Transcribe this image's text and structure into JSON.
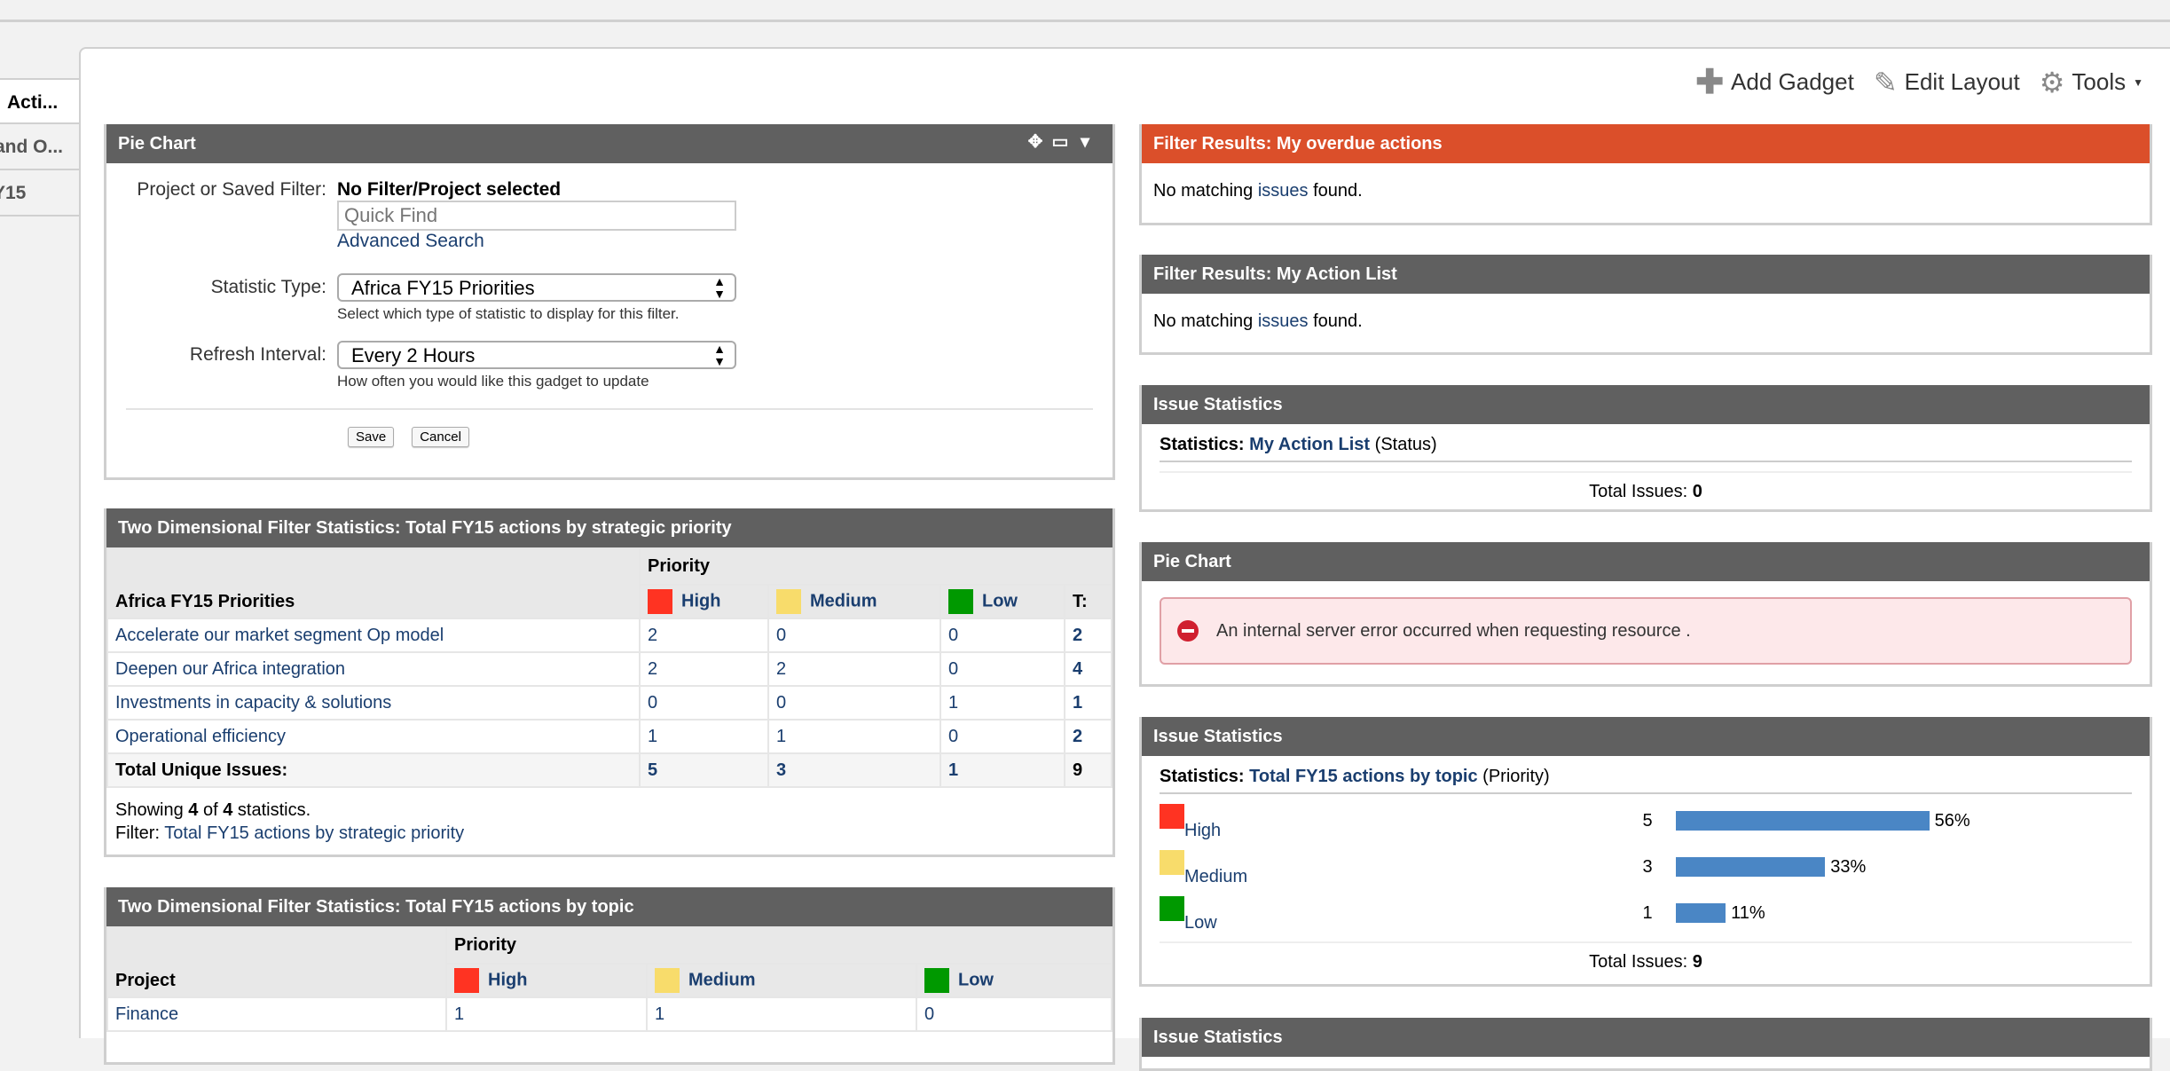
{
  "tabs": [
    "Acti...",
    "and O...",
    "Y15"
  ],
  "toolbar": {
    "add_gadget": "Add Gadget",
    "edit_layout": "Edit Layout",
    "tools": "Tools"
  },
  "pie_config": {
    "title": "Pie Chart",
    "project_label": "Project or Saved Filter:",
    "project_value": "No Filter/Project selected",
    "quick_find_placeholder": "Quick Find",
    "advanced_search": "Advanced Search",
    "stat_label": "Statistic Type:",
    "stat_value": "Africa FY15 Priorities",
    "stat_hint": "Select which type of statistic to display for this filter.",
    "refresh_label": "Refresh Interval:",
    "refresh_value": "Every 2 Hours",
    "refresh_hint": "How often you would like this gadget to update",
    "save": "Save",
    "cancel": "Cancel"
  },
  "colors": {
    "high": "#ff3322",
    "medium": "#f8dc6b",
    "low": "#009900",
    "header": "#606060",
    "header_alert": "#db4f2a",
    "bar": "#4a86c5"
  },
  "two_dim_1": {
    "title": "Two Dimensional Filter Statistics: Total FY15 actions by strategic priority",
    "row_header": "Africa FY15 Priorities",
    "group_header": "Priority",
    "columns": [
      "High",
      "Medium",
      "Low",
      "T:"
    ],
    "rows": [
      {
        "label": "Accelerate our market segment Op model",
        "values": [
          "2",
          "0",
          "0",
          "2"
        ]
      },
      {
        "label": "Deepen our Africa integration",
        "values": [
          "2",
          "2",
          "0",
          "4"
        ]
      },
      {
        "label": "Investments in capacity & solutions",
        "values": [
          "0",
          "0",
          "1",
          "1"
        ]
      },
      {
        "label": "Operational efficiency",
        "values": [
          "1",
          "1",
          "0",
          "2"
        ]
      }
    ],
    "total": {
      "label": "Total Unique Issues:",
      "values": [
        "5",
        "3",
        "1",
        "9"
      ]
    },
    "showing_pre": "Showing ",
    "showing_n": "4",
    "showing_mid": " of ",
    "showing_m": "4",
    "showing_post": " statistics.",
    "filter_label": "Filter: ",
    "filter_link": "Total FY15 actions by strategic priority"
  },
  "two_dim_2": {
    "title": "Two Dimensional Filter Statistics: Total FY15 actions by topic",
    "row_header": "Project",
    "group_header": "Priority",
    "columns": [
      "High",
      "Medium",
      "Low"
    ],
    "rows": [
      {
        "label": "Finance",
        "values": [
          "1",
          "1",
          "0"
        ]
      }
    ]
  },
  "overdue": {
    "title": "Filter Results: My overdue actions",
    "pre": "No matching ",
    "link": "issues",
    "post": " found."
  },
  "action_list": {
    "title": "Filter Results: My Action List",
    "pre": "No matching ",
    "link": "issues",
    "post": " found."
  },
  "issue_stats_1": {
    "title": "Issue Statistics",
    "label": "Statistics: ",
    "link": "My Action List",
    "type": "(Status)",
    "total_label": "Total Issues: ",
    "total": "0"
  },
  "pie_error": {
    "title": "Pie Chart",
    "message": "An internal server error occurred when requesting resource ."
  },
  "issue_stats_2": {
    "title": "Issue Statistics",
    "label": "Statistics: ",
    "link": "Total FY15 actions by topic",
    "type": "(Priority)",
    "rows": [
      {
        "name": "High",
        "count": "5",
        "percent": 56,
        "percent_label": "56%"
      },
      {
        "name": "Medium",
        "count": "3",
        "percent": 33,
        "percent_label": "33%"
      },
      {
        "name": "Low",
        "count": "1",
        "percent": 11,
        "percent_label": "11%"
      }
    ],
    "total_label": "Total Issues: ",
    "total": "9"
  },
  "issue_stats_3": {
    "title": "Issue Statistics"
  }
}
